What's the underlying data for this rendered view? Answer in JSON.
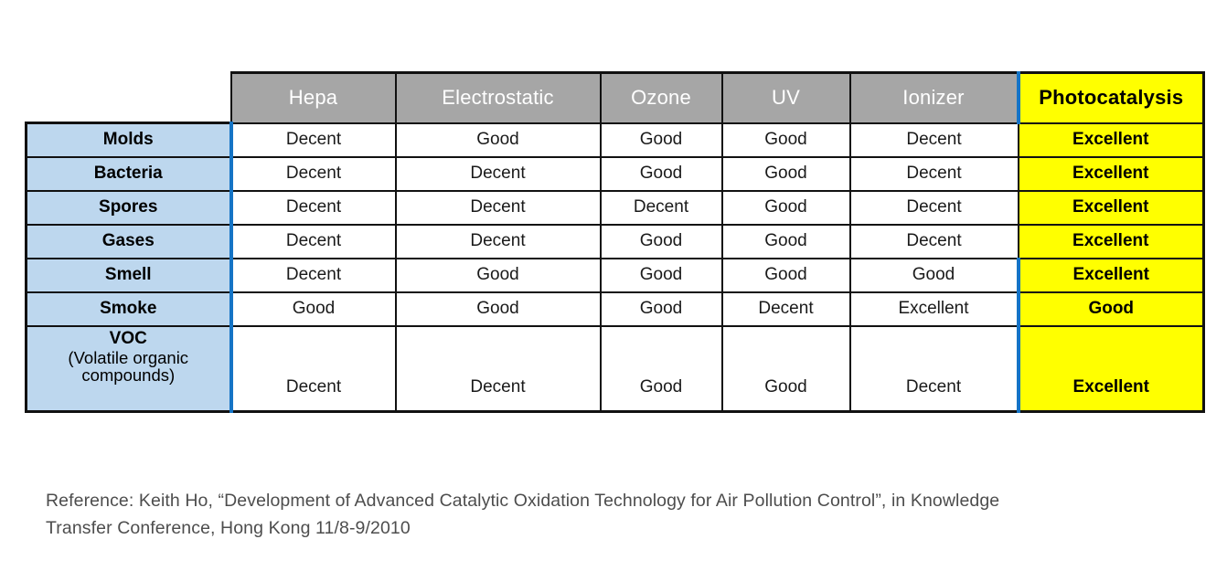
{
  "colors": {
    "header_gray": "#A6A6A6",
    "label_blue": "#BDD7EE",
    "accent_blue": "#1574C5",
    "highlight_yellow": "#FFFF00",
    "border_black": "#111111"
  },
  "table": {
    "columns": [
      "Hepa",
      "Electrostatic",
      "Ozone",
      "UV",
      "Ionizer",
      "Photocatalysis"
    ],
    "highlight_column": "Photocatalysis",
    "rows": [
      {
        "label": "Molds",
        "sublabel": "",
        "values": [
          "Decent",
          "Good",
          "Good",
          "Good",
          "Decent",
          "Excellent"
        ]
      },
      {
        "label": "Bacteria",
        "sublabel": "",
        "values": [
          "Decent",
          "Decent",
          "Good",
          "Good",
          "Decent",
          "Excellent"
        ]
      },
      {
        "label": "Spores",
        "sublabel": "",
        "values": [
          "Decent",
          "Decent",
          "Decent",
          "Good",
          "Decent",
          "Excellent"
        ]
      },
      {
        "label": "Gases",
        "sublabel": "",
        "values": [
          "Decent",
          "Decent",
          "Good",
          "Good",
          "Decent",
          "Excellent"
        ]
      },
      {
        "label": "Smell",
        "sublabel": "",
        "values": [
          "Decent",
          "Good",
          "Good",
          "Good",
          "Good",
          "Excellent"
        ]
      },
      {
        "label": "Smoke",
        "sublabel": "",
        "values": [
          "Good",
          "Good",
          "Good",
          "Decent",
          "Excellent",
          "Good"
        ]
      },
      {
        "label": "VOC",
        "sublabel": "(Volatile organic compounds)",
        "values": [
          "Decent",
          "Decent",
          "Good",
          "Good",
          "Decent",
          "Excellent"
        ]
      }
    ]
  },
  "reference": {
    "line1": "Reference: Keith Ho, “Development of Advanced Catalytic Oxidation Technology for Air Pollution Control”, in Knowledge",
    "line2": "Transfer Conference, Hong Kong 11/8-9/2010"
  }
}
